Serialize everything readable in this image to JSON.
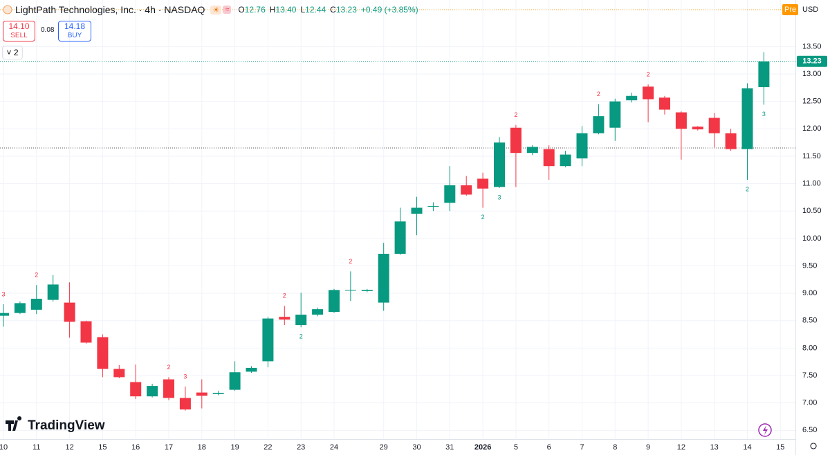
{
  "chart_data": {
    "type": "candlestick",
    "title": "LightPath Technologies, Inc. · 4h · NASDAQ",
    "legend": [
      {
        "label": "O",
        "value": "12.76"
      },
      {
        "label": "H",
        "value": "13.40"
      },
      {
        "label": "L",
        "value": "12.44"
      },
      {
        "label": "C",
        "value": "13.23"
      }
    ],
    "change": "+0.49 (+3.85%)",
    "quote": {
      "sell": "14.10",
      "sell_label": "SELL",
      "spread": "0.08",
      "buy": "14.18",
      "buy_label": "BUY"
    },
    "indicator_count": 2,
    "session": "Pre",
    "currency": "USD",
    "watermark": "TradingView",
    "categories": [
      "10",
      null,
      "11",
      null,
      "12",
      null,
      "15",
      null,
      "16",
      null,
      "17",
      null,
      "18",
      null,
      "19",
      null,
      "22",
      null,
      "23",
      null,
      "24",
      null,
      null,
      "29",
      null,
      "30",
      null,
      "31",
      null,
      "2026",
      null,
      "5",
      null,
      "6",
      null,
      "7",
      null,
      "8",
      null,
      "9",
      null,
      "12",
      null,
      "13",
      null,
      "14",
      null,
      "15"
    ],
    "open": [
      8.59,
      8.64,
      8.7,
      8.88,
      8.83,
      8.49,
      8.2,
      7.62,
      7.38,
      7.12,
      7.43,
      7.09,
      7.19,
      7.16,
      7.24,
      7.57,
      7.76,
      8.57,
      8.42,
      8.61,
      8.66,
      9.05,
      9.04,
      8.83,
      9.72,
      10.45,
      10.58,
      10.65,
      10.97,
      11.09,
      10.94,
      12.02,
      11.56,
      11.63,
      11.32,
      11.46,
      11.92,
      12.02,
      12.52,
      12.77,
      12.57,
      12.3,
      12.04,
      12.2,
      11.92,
      11.63,
      12.76,
      null
    ],
    "high": [
      8.8,
      8.85,
      9.15,
      9.33,
      9.2,
      8.5,
      8.25,
      7.69,
      7.7,
      7.35,
      7.47,
      7.3,
      7.43,
      7.22,
      7.76,
      7.67,
      8.57,
      8.77,
      9.01,
      8.74,
      9.08,
      9.4,
      9.08,
      9.92,
      10.56,
      10.76,
      10.66,
      11.32,
      11.14,
      11.2,
      11.85,
      12.07,
      11.7,
      11.7,
      11.6,
      12.05,
      12.45,
      12.55,
      12.66,
      12.81,
      12.6,
      12.32,
      12.05,
      12.29,
      12.0,
      12.83,
      13.4,
      null
    ],
    "low": [
      8.39,
      8.62,
      8.62,
      8.85,
      8.19,
      8.08,
      7.47,
      7.45,
      7.07,
      7.1,
      7.05,
      6.86,
      6.9,
      7.14,
      7.22,
      7.55,
      7.65,
      8.42,
      8.38,
      8.58,
      8.64,
      8.86,
      9.02,
      8.68,
      9.7,
      10.06,
      10.5,
      10.5,
      10.78,
      10.56,
      10.92,
      10.94,
      11.52,
      11.07,
      11.3,
      11.32,
      11.9,
      11.78,
      12.48,
      12.12,
      12.26,
      11.44,
      11.97,
      11.66,
      11.6,
      11.07,
      12.44,
      null
    ],
    "close": [
      8.64,
      8.82,
      8.9,
      9.16,
      8.48,
      8.1,
      7.62,
      7.47,
      7.12,
      7.31,
      7.09,
      6.88,
      7.13,
      7.18,
      7.56,
      7.64,
      8.54,
      8.52,
      8.61,
      8.71,
      9.06,
      9.06,
      9.06,
      9.72,
      10.31,
      10.56,
      10.59,
      10.97,
      10.8,
      10.91,
      11.75,
      11.56,
      11.67,
      11.32,
      11.53,
      11.92,
      12.23,
      12.5,
      12.6,
      12.54,
      12.35,
      12.0,
      11.99,
      11.92,
      11.63,
      12.74,
      13.23,
      null
    ],
    "labels_above": [
      3,
      null,
      2,
      null,
      null,
      null,
      null,
      null,
      null,
      null,
      2,
      3,
      null,
      null,
      null,
      null,
      null,
      2,
      null,
      null,
      null,
      2,
      null,
      null,
      null,
      null,
      null,
      null,
      null,
      null,
      null,
      2,
      null,
      null,
      null,
      null,
      2,
      null,
      null,
      2,
      null,
      null,
      null,
      null,
      null,
      null,
      null,
      null
    ],
    "labels_below": [
      null,
      null,
      null,
      null,
      null,
      null,
      null,
      null,
      null,
      null,
      null,
      null,
      null,
      null,
      null,
      null,
      null,
      null,
      2,
      null,
      null,
      null,
      null,
      null,
      null,
      null,
      null,
      null,
      null,
      2,
      3,
      null,
      null,
      null,
      null,
      null,
      null,
      null,
      null,
      null,
      null,
      null,
      null,
      null,
      null,
      2,
      3,
      null
    ],
    "up_color": "#089981",
    "down_color": "#f23645",
    "horizontal_line": 11.65,
    "ylim": [
      6.34,
      14.35
    ],
    "yticks": [
      {
        "value": 6.5,
        "label": "6.50"
      },
      {
        "value": 7,
        "label": "7.00"
      },
      {
        "value": 7.5,
        "label": "7.50"
      },
      {
        "value": 8,
        "label": "8.00"
      },
      {
        "value": 8.5,
        "label": "8.50"
      },
      {
        "value": 9,
        "label": "9.00"
      },
      {
        "value": 9.5,
        "label": "9.50"
      },
      {
        "value": 10,
        "label": "10.00"
      },
      {
        "value": 10.5,
        "label": "10.50"
      },
      {
        "value": 11,
        "label": "11.00"
      },
      {
        "value": 11.5,
        "label": "11.50"
      },
      {
        "value": 12,
        "label": "12.00"
      },
      {
        "value": 12.5,
        "label": "12.50"
      },
      {
        "value": 13,
        "label": "13.00"
      },
      {
        "value": 13.5,
        "label": "13.50"
      }
    ],
    "grid": true
  }
}
